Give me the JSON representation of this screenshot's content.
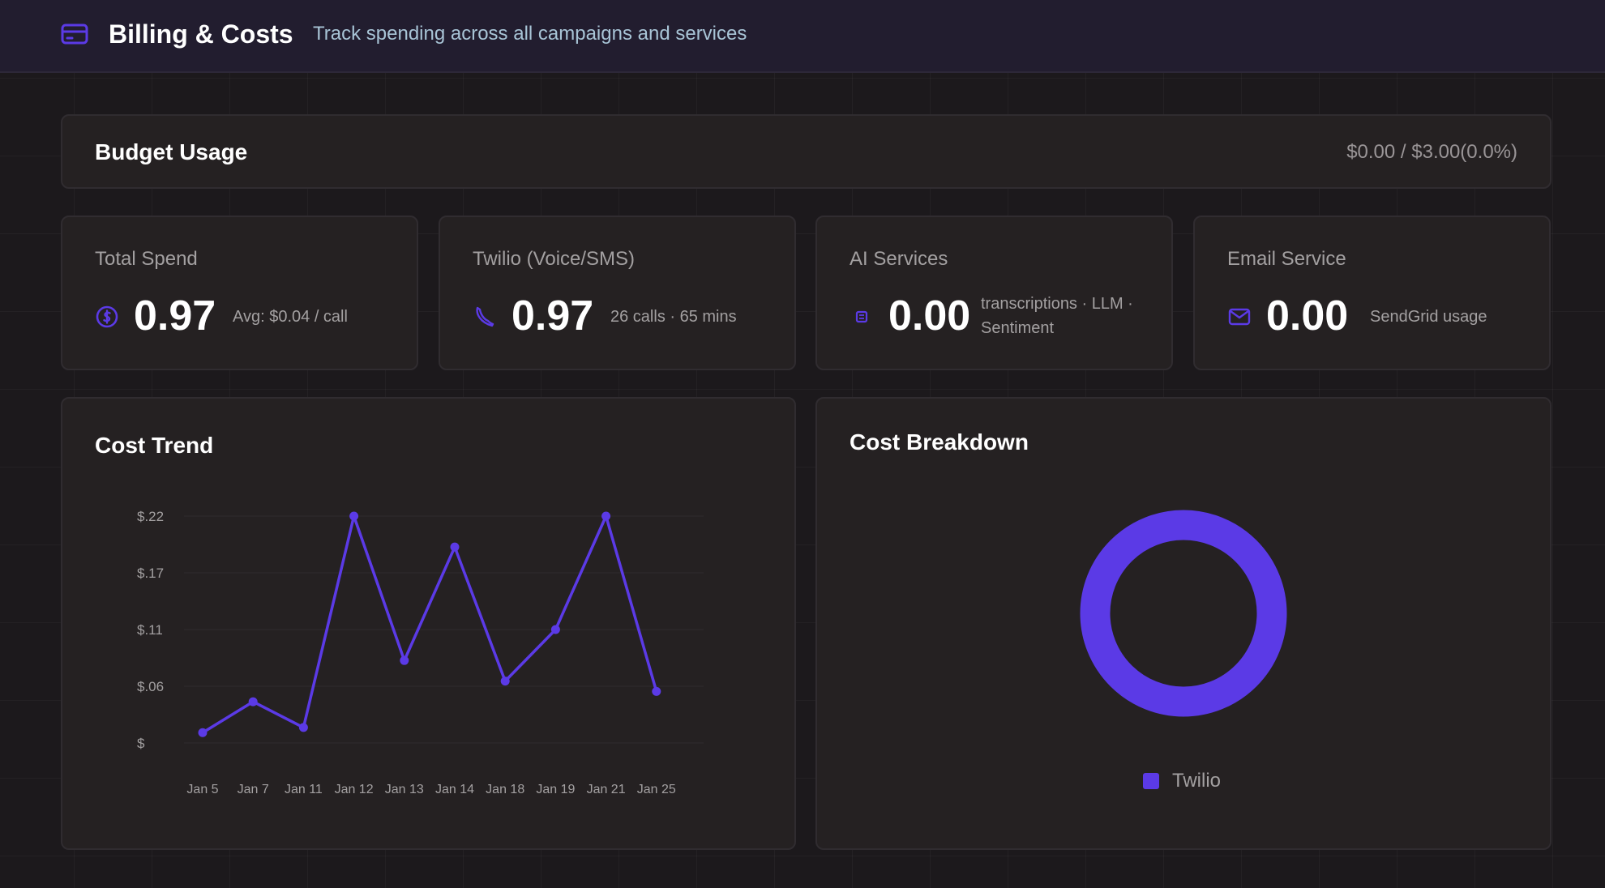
{
  "header": {
    "title": "Billing & Costs",
    "subtitle": "Track spending across all campaigns and services",
    "icon": "credit-card-icon"
  },
  "budget": {
    "title": "Budget Usage",
    "value": "$0.00 / $3.00(0.0%)"
  },
  "stats": [
    {
      "title": "Total Spend",
      "value": "0.97",
      "detail": "Avg: $0.04 / call",
      "icon": "coin-icon"
    },
    {
      "title": "Twilio (Voice/SMS)",
      "value": "0.97",
      "detail": "26 calls · 65 mins",
      "icon": "phone-icon"
    },
    {
      "title": "AI Services",
      "value": "0.00",
      "detail": "transcriptions · LLM · Sentiment",
      "icon": "chip-icon"
    },
    {
      "title": "Email Service",
      "value": "0.00",
      "detail": "SendGrid usage",
      "icon": "mail-icon"
    }
  ],
  "cost_trend": {
    "title": "Cost Trend"
  },
  "cost_breakdown": {
    "title": "Cost Breakdown",
    "legend": [
      {
        "label": "Twilio",
        "color": "#5b3ae6"
      }
    ]
  },
  "colors": {
    "accent": "#5b3ae6",
    "background": "#1c191c",
    "card": "#252122"
  },
  "chart_data": [
    {
      "type": "line",
      "title": "Cost Trend",
      "x": [
        "Jan 5",
        "Jan 7",
        "Jan 11",
        "Jan 12",
        "Jan 13",
        "Jan 14",
        "Jan 18",
        "Jan 19",
        "Jan 21",
        "Jan 25"
      ],
      "series": [
        {
          "values": [
            0.01,
            0.04,
            0.015,
            0.22,
            0.08,
            0.19,
            0.06,
            0.11,
            0.22,
            0.05
          ]
        }
      ],
      "yticks": [
        "$",
        "$.06",
        "$.11",
        "$.17",
        "$.22"
      ],
      "ylim": [
        0,
        0.22
      ],
      "grid": true,
      "color": "#5b3ae6"
    },
    {
      "type": "pie",
      "title": "Cost Breakdown",
      "donut": true,
      "categories": [
        "Twilio"
      ],
      "values": [
        0.97
      ],
      "colors": [
        "#5b3ae6"
      ],
      "legend": "bottom"
    }
  ]
}
